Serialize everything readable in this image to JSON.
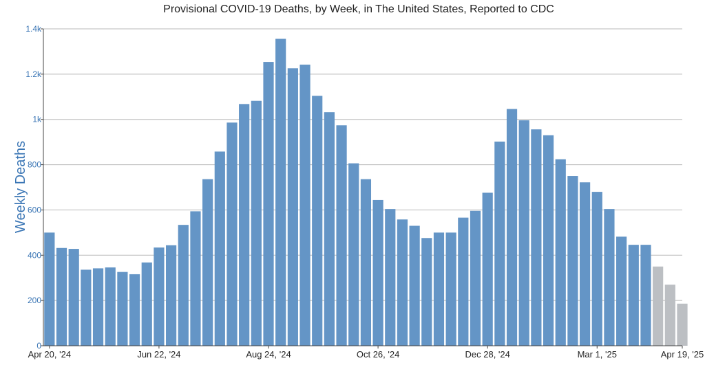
{
  "colors": {
    "reported_bar": "#6495c6",
    "provisional_bar": "#bcbfc3",
    "axis_text": "#3b76b5",
    "grid": "#b8b8b8",
    "title": "#222222"
  },
  "chart_data": {
    "type": "bar",
    "title": "Provisional COVID-19 Deaths, by Week, in The United States, Reported to CDC",
    "xlabel": "",
    "ylabel": "Weekly Deaths",
    "ylim": [
      0,
      1400
    ],
    "grid": true,
    "legend": "none",
    "y_ticks": [
      {
        "value": 0,
        "label": "0"
      },
      {
        "value": 200,
        "label": "200"
      },
      {
        "value": 400,
        "label": "400"
      },
      {
        "value": 600,
        "label": "600"
      },
      {
        "value": 800,
        "label": "800"
      },
      {
        "value": 1000,
        "label": "1k"
      },
      {
        "value": 1200,
        "label": "1.2k"
      },
      {
        "value": 1400,
        "label": "1.4k"
      }
    ],
    "x_ticks": [
      {
        "index": 0,
        "label": "Apr 20, '24"
      },
      {
        "index": 9,
        "label": "Jun 22, '24"
      },
      {
        "index": 18,
        "label": "Aug 24, '24"
      },
      {
        "index": 27,
        "label": "Oct 26, '24"
      },
      {
        "index": 36,
        "label": "Dec 28, '24"
      },
      {
        "index": 45,
        "label": "Mar 1, '25"
      },
      {
        "index": 52,
        "label": "Apr 19, '25"
      }
    ],
    "weeks_start": "Apr 20, '24",
    "weeks_end": "Apr 19, '25",
    "series": [
      {
        "values": [
          500,
          432,
          428,
          336,
          342,
          346,
          326,
          316,
          368,
          434,
          444,
          534,
          594,
          736,
          858,
          986,
          1068,
          1082,
          1254,
          1356,
          1226,
          1242,
          1104,
          1032,
          974,
          806,
          736,
          644,
          604,
          558,
          530,
          476,
          500,
          500,
          566,
          596,
          676,
          902,
          1046,
          996,
          956,
          930,
          824,
          750,
          722,
          680,
          604,
          482,
          446,
          446,
          350,
          270,
          186
        ],
        "provisional_from_index": 50
      }
    ]
  }
}
